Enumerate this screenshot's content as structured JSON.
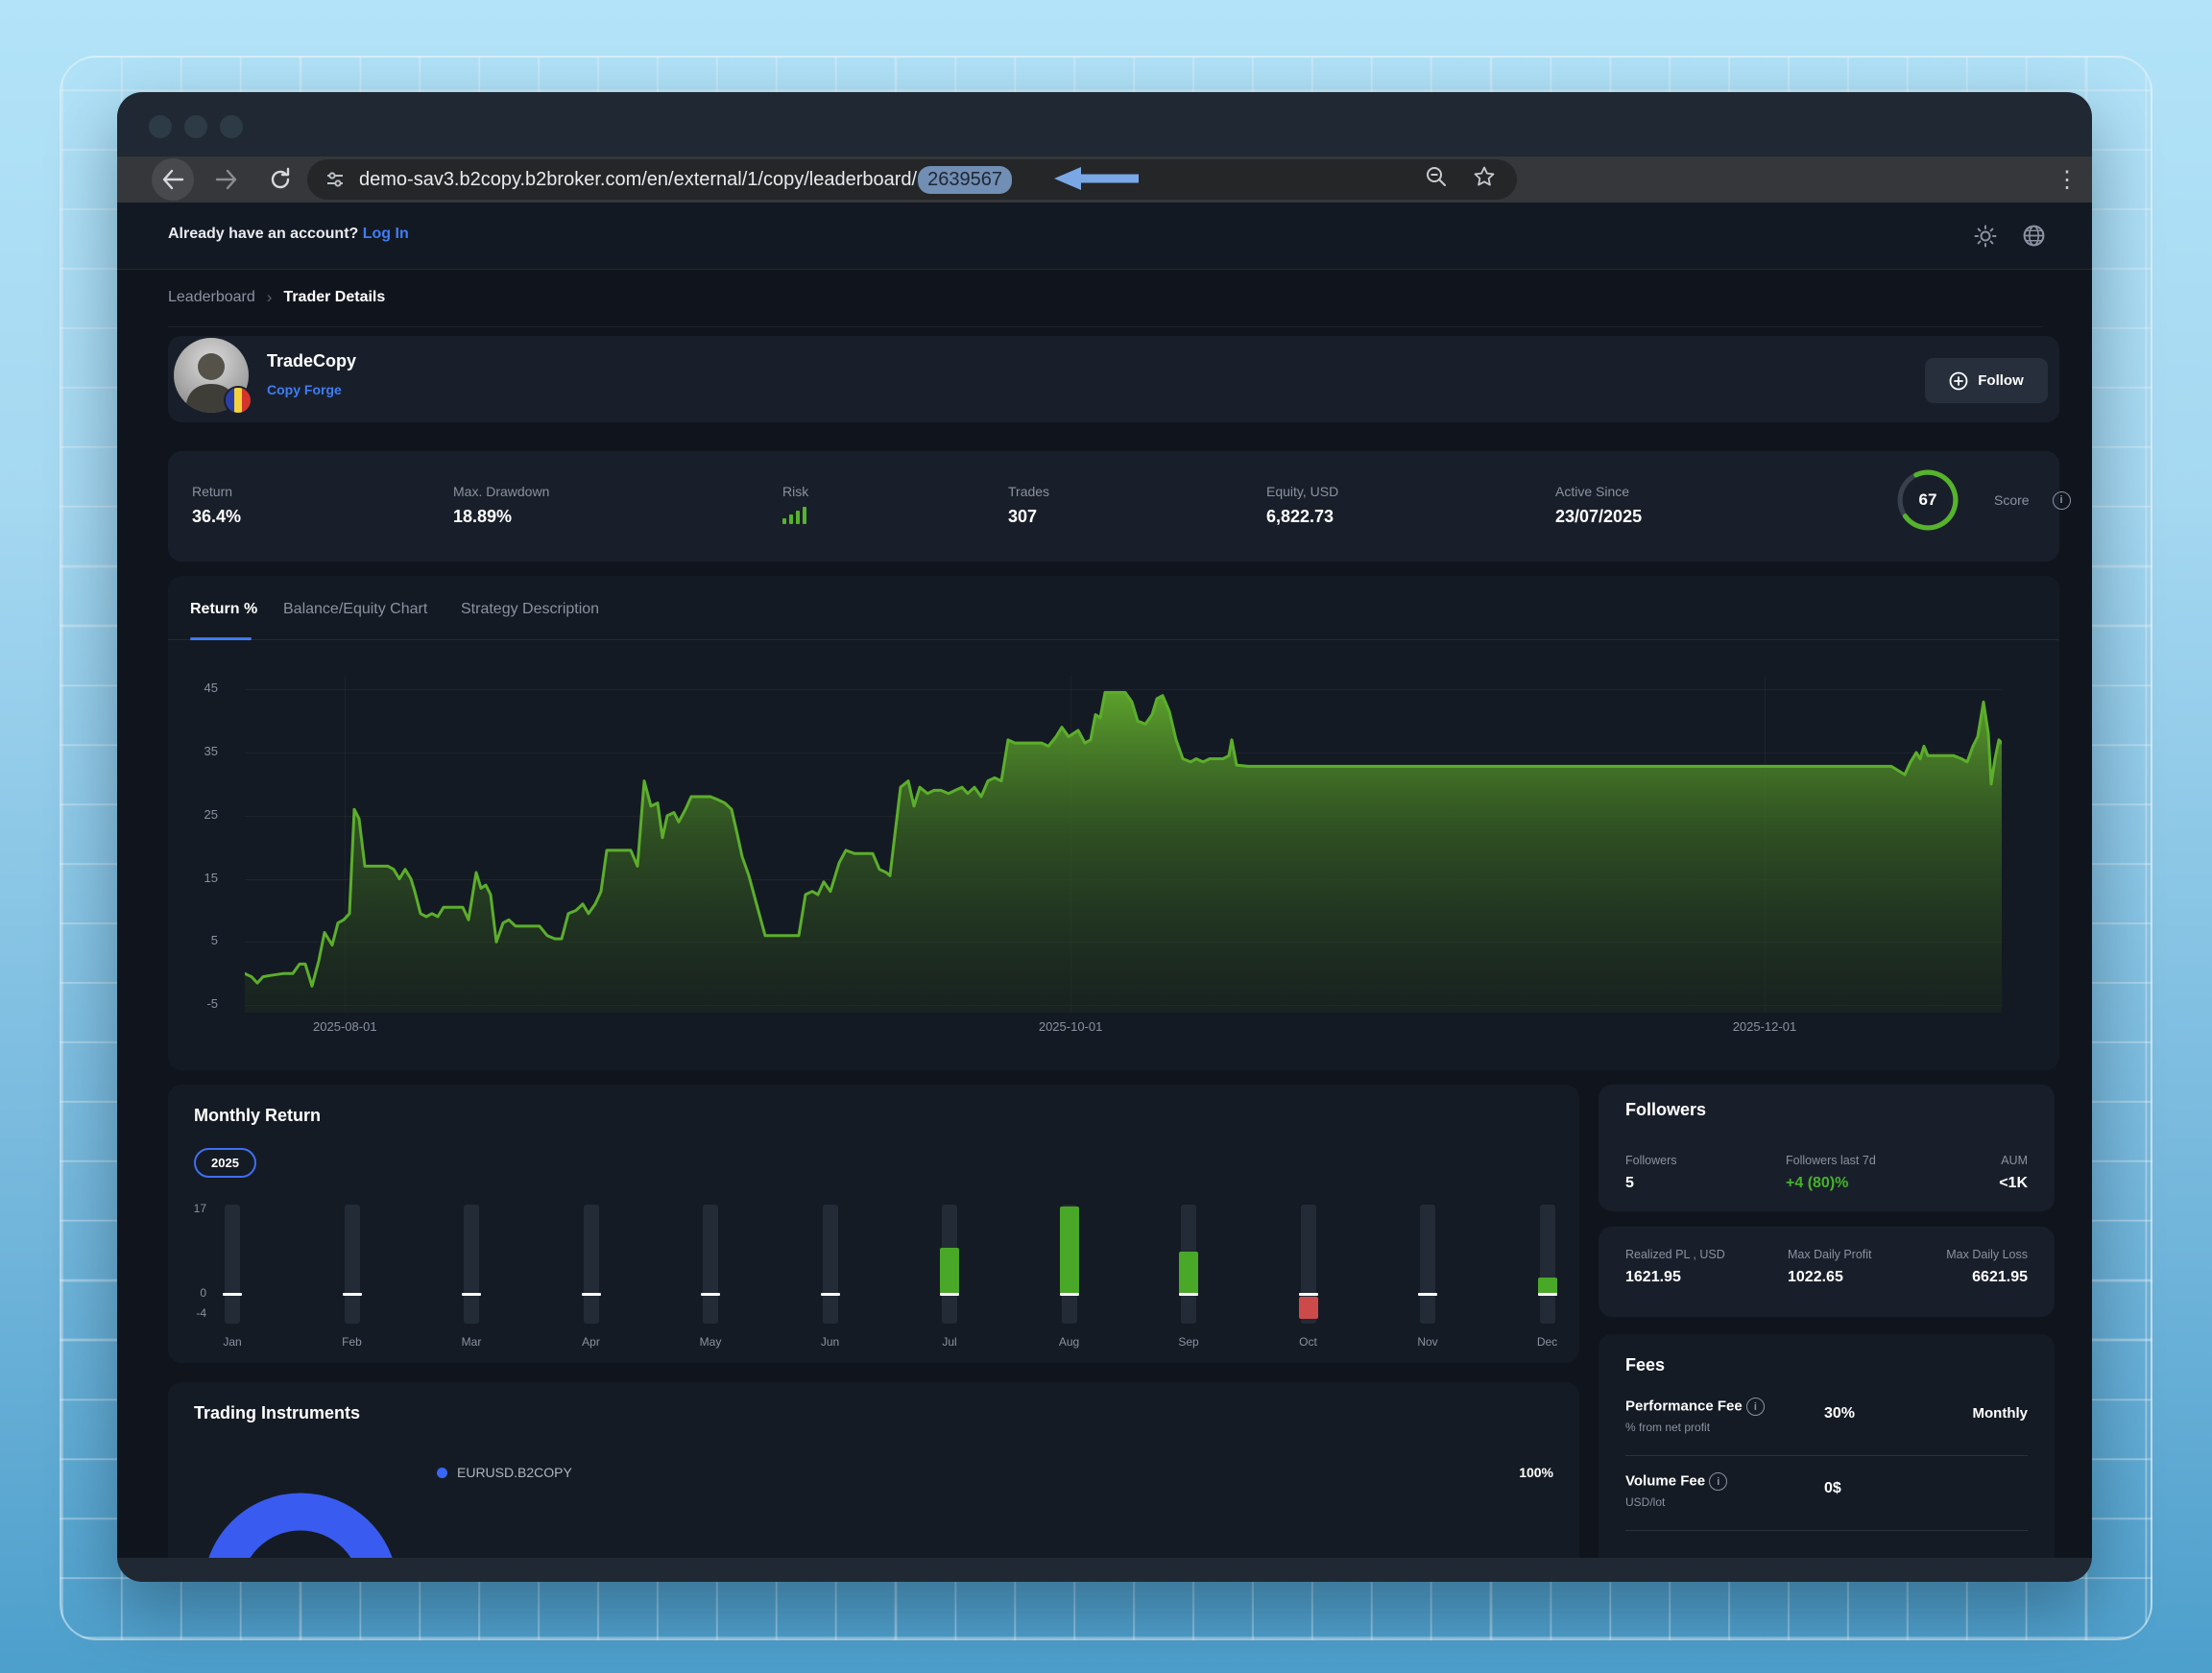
{
  "browser": {
    "url_prefix": "demo-sav3.b2copy.b2broker.com/en/external/1/copy/leaderboard/",
    "url_highlight": "2639567",
    "kebab_glyph": "⋮"
  },
  "announce": {
    "text": "Already have an account? ",
    "login_label": "Log In"
  },
  "breadcrumb": {
    "parent": "Leaderboard",
    "separator": "›",
    "current": "Trader Details"
  },
  "profile": {
    "name": "TradeCopy",
    "strategy_link": "Copy Forge",
    "follow_label": "Follow"
  },
  "stats": {
    "return_label": "Return",
    "return_value": "36.4%",
    "drawdown_label": "Max. Drawdown",
    "drawdown_value": "18.89%",
    "risk_label": "Risk",
    "trades_label": "Trades",
    "trades_value": "307",
    "equity_label": "Equity, USD",
    "equity_value": "6,822.73",
    "active_label": "Active Since",
    "active_value": "23/07/2025",
    "score_label": "Score",
    "score_value": "67"
  },
  "tabs": {
    "tab1": "Return %",
    "tab2": "Balance/Equity Chart",
    "tab3": "Strategy Description"
  },
  "monthly": {
    "title": "Monthly Return",
    "year": "2025"
  },
  "followers": {
    "title": "Followers",
    "col1_label": "Followers",
    "col1_value": "5",
    "col2_label": "Followers last 7d",
    "col2_value": "+4 (80)%",
    "col3_label": "AUM",
    "col3_value": "<1K"
  },
  "pl": {
    "col1_label": "Realized PL , USD",
    "col1_value": "1621.95",
    "col2_label": "Max Daily Profit",
    "col2_value": "1022.65",
    "col3_label": "Max Daily Loss",
    "col3_value": "6621.95"
  },
  "fees": {
    "title": "Fees",
    "perf_label": "Performance Fee",
    "perf_sub": "% from net profit",
    "perf_value": "30%",
    "perf_period": "Monthly",
    "vol_label": "Volume Fee",
    "vol_sub": "USD/lot",
    "vol_value": "0$"
  },
  "instruments": {
    "title": "Trading Instruments",
    "legend_label": "EURUSD.B2COPY",
    "legend_value": "100%"
  },
  "colors": {
    "accent_blue": "#3f7df6",
    "green_line": "#5cae2c",
    "bar_green": "#49a827",
    "bar_red": "#cc4a4a",
    "score_green": "#56b32c",
    "donut_blue": "#3a5bf0",
    "highlight_pill": "#718eb4",
    "annotation_arrow": "#7aa7e6"
  },
  "chart_data": [
    {
      "type": "area",
      "title": "Return %",
      "xlabel": "",
      "ylabel": "Return %",
      "ylim": [
        -5,
        45
      ],
      "yticks": [
        45,
        35,
        25,
        15,
        5,
        -5
      ],
      "xticks": [
        {
          "label": "2025-08-01",
          "pos": 0.057
        },
        {
          "label": "2025-10-01",
          "pos": 0.47
        },
        {
          "label": "2025-12-01",
          "pos": 0.865
        }
      ],
      "grid": true,
      "line_color": "#5cae2c",
      "points": [
        [
          0,
          0
        ],
        [
          7,
          -0.5
        ],
        [
          13,
          -1.5
        ],
        [
          19,
          -0.5
        ],
        [
          27,
          -0.3
        ],
        [
          40,
          0
        ],
        [
          50,
          0
        ],
        [
          57,
          1.5
        ],
        [
          63,
          1.5
        ],
        [
          70,
          -2
        ],
        [
          77,
          2
        ],
        [
          83,
          6.5
        ],
        [
          91,
          4.5
        ],
        [
          97,
          8
        ],
        [
          103,
          8.5
        ],
        [
          109,
          9.5
        ],
        [
          114,
          26
        ],
        [
          119,
          24.5
        ],
        [
          125,
          17
        ],
        [
          140,
          17
        ],
        [
          149,
          17
        ],
        [
          155,
          16.5
        ],
        [
          161,
          15
        ],
        [
          167,
          16.5
        ],
        [
          173,
          15
        ],
        [
          177,
          13
        ],
        [
          183,
          9.5
        ],
        [
          189,
          9
        ],
        [
          195,
          9.5
        ],
        [
          201,
          9
        ],
        [
          207,
          10.5
        ],
        [
          220,
          10.5
        ],
        [
          227,
          10.5
        ],
        [
          233,
          8.5
        ],
        [
          241,
          16
        ],
        [
          246,
          13.5
        ],
        [
          251,
          14
        ],
        [
          256,
          12.5
        ],
        [
          262,
          5
        ],
        [
          269,
          8
        ],
        [
          275,
          8.5
        ],
        [
          282,
          7.5
        ],
        [
          290,
          7.5
        ],
        [
          300,
          7.5
        ],
        [
          307,
          7.5
        ],
        [
          315,
          6
        ],
        [
          323,
          5.5
        ],
        [
          330,
          5.5
        ],
        [
          337,
          9.5
        ],
        [
          345,
          10
        ],
        [
          352,
          11
        ],
        [
          358,
          9.5
        ],
        [
          365,
          11
        ],
        [
          371,
          13
        ],
        [
          377,
          19.5
        ],
        [
          385,
          19.5
        ],
        [
          395,
          19.5
        ],
        [
          402,
          19.5
        ],
        [
          409,
          17
        ],
        [
          416,
          30.5
        ],
        [
          423,
          26.5
        ],
        [
          430,
          27
        ],
        [
          435,
          21.5
        ],
        [
          440,
          25
        ],
        [
          447,
          25.5
        ],
        [
          452,
          24
        ],
        [
          459,
          26
        ],
        [
          465,
          28
        ],
        [
          475,
          28
        ],
        [
          485,
          28
        ],
        [
          493,
          27.5
        ],
        [
          500,
          27
        ],
        [
          507,
          26
        ],
        [
          513,
          22
        ],
        [
          518,
          18.5
        ],
        [
          525,
          15.5
        ],
        [
          533,
          11
        ],
        [
          542,
          6
        ],
        [
          555,
          6
        ],
        [
          567,
          6
        ],
        [
          577,
          6
        ],
        [
          584,
          12.5
        ],
        [
          591,
          13
        ],
        [
          597,
          12.5
        ],
        [
          603,
          14.5
        ],
        [
          610,
          13
        ],
        [
          619,
          17.5
        ],
        [
          626,
          19.5
        ],
        [
          635,
          19
        ],
        [
          645,
          19
        ],
        [
          654,
          19
        ],
        [
          661,
          16.5
        ],
        [
          668,
          16
        ],
        [
          672,
          15.5
        ],
        [
          683,
          29.5
        ],
        [
          691,
          30.5
        ],
        [
          697,
          26.5
        ],
        [
          703,
          29.5
        ],
        [
          711,
          28.5
        ],
        [
          718,
          29
        ],
        [
          725,
          29
        ],
        [
          733,
          28.5
        ],
        [
          740,
          29
        ],
        [
          747,
          29.5
        ],
        [
          753,
          28.5
        ],
        [
          760,
          29.5
        ],
        [
          767,
          28
        ],
        [
          774,
          30.5
        ],
        [
          781,
          31
        ],
        [
          788,
          30.5
        ],
        [
          795,
          37
        ],
        [
          802,
          36.5
        ],
        [
          810,
          36.5
        ],
        [
          820,
          36.5
        ],
        [
          830,
          36.5
        ],
        [
          837,
          36
        ],
        [
          845,
          37.5
        ],
        [
          851,
          39
        ],
        [
          858,
          37.5
        ],
        [
          863,
          38
        ],
        [
          868,
          38.5
        ],
        [
          875,
          36.5
        ],
        [
          881,
          37
        ],
        [
          886,
          41
        ],
        [
          891,
          40.5
        ],
        [
          896,
          44.5
        ],
        [
          905,
          44.5
        ],
        [
          917,
          44.5
        ],
        [
          924,
          43
        ],
        [
          930,
          40
        ],
        [
          938,
          39.5
        ],
        [
          945,
          41
        ],
        [
          950,
          43.5
        ],
        [
          956,
          44
        ],
        [
          963,
          41.5
        ],
        [
          970,
          37
        ],
        [
          977,
          34
        ],
        [
          985,
          33.5
        ],
        [
          991,
          34
        ],
        [
          998,
          33.5
        ],
        [
          1005,
          34
        ],
        [
          1013,
          34
        ],
        [
          1019,
          34
        ],
        [
          1025,
          34.5
        ],
        [
          1028,
          37
        ],
        [
          1033,
          33
        ],
        [
          1045,
          32.8
        ],
        [
          1095,
          32.8
        ],
        [
          1195,
          32.8
        ],
        [
          1295,
          32.8
        ],
        [
          1395,
          32.8
        ],
        [
          1495,
          32.8
        ],
        [
          1595,
          32.8
        ],
        [
          1695,
          32.8
        ],
        [
          1715,
          32.8
        ],
        [
          1729,
          31.5
        ],
        [
          1735,
          33.5
        ],
        [
          1741,
          35
        ],
        [
          1745,
          34
        ],
        [
          1749,
          36
        ],
        [
          1753,
          34.5
        ],
        [
          1760,
          34.5
        ],
        [
          1770,
          34.5
        ],
        [
          1780,
          34.5
        ],
        [
          1788,
          34
        ],
        [
          1794,
          33.5
        ],
        [
          1800,
          36
        ],
        [
          1805,
          37.5
        ],
        [
          1811,
          43
        ],
        [
          1816,
          38
        ],
        [
          1819,
          30
        ],
        [
          1823,
          34
        ],
        [
          1827,
          37
        ],
        [
          1830,
          36.5
        ]
      ]
    },
    {
      "type": "bar",
      "title": "Monthly Return",
      "categories": [
        "Jan",
        "Feb",
        "Mar",
        "Apr",
        "May",
        "Jun",
        "Jul",
        "Aug",
        "Sep",
        "Oct",
        "Nov",
        "Dec"
      ],
      "values": [
        0,
        0,
        0,
        0,
        0,
        0,
        9.3,
        17.5,
        8.5,
        -4.5,
        0,
        3.2
      ],
      "ylim": [
        -4,
        17
      ],
      "yticks": [
        17,
        0,
        -4
      ],
      "positive_color": "#49a827",
      "negative_color": "#cc4a4a"
    },
    {
      "type": "pie",
      "title": "Trading Instruments",
      "labels": [
        "EURUSD.B2COPY"
      ],
      "values": [
        100
      ],
      "colors": [
        "#3a5bf0"
      ],
      "legend_position": "top"
    }
  ]
}
